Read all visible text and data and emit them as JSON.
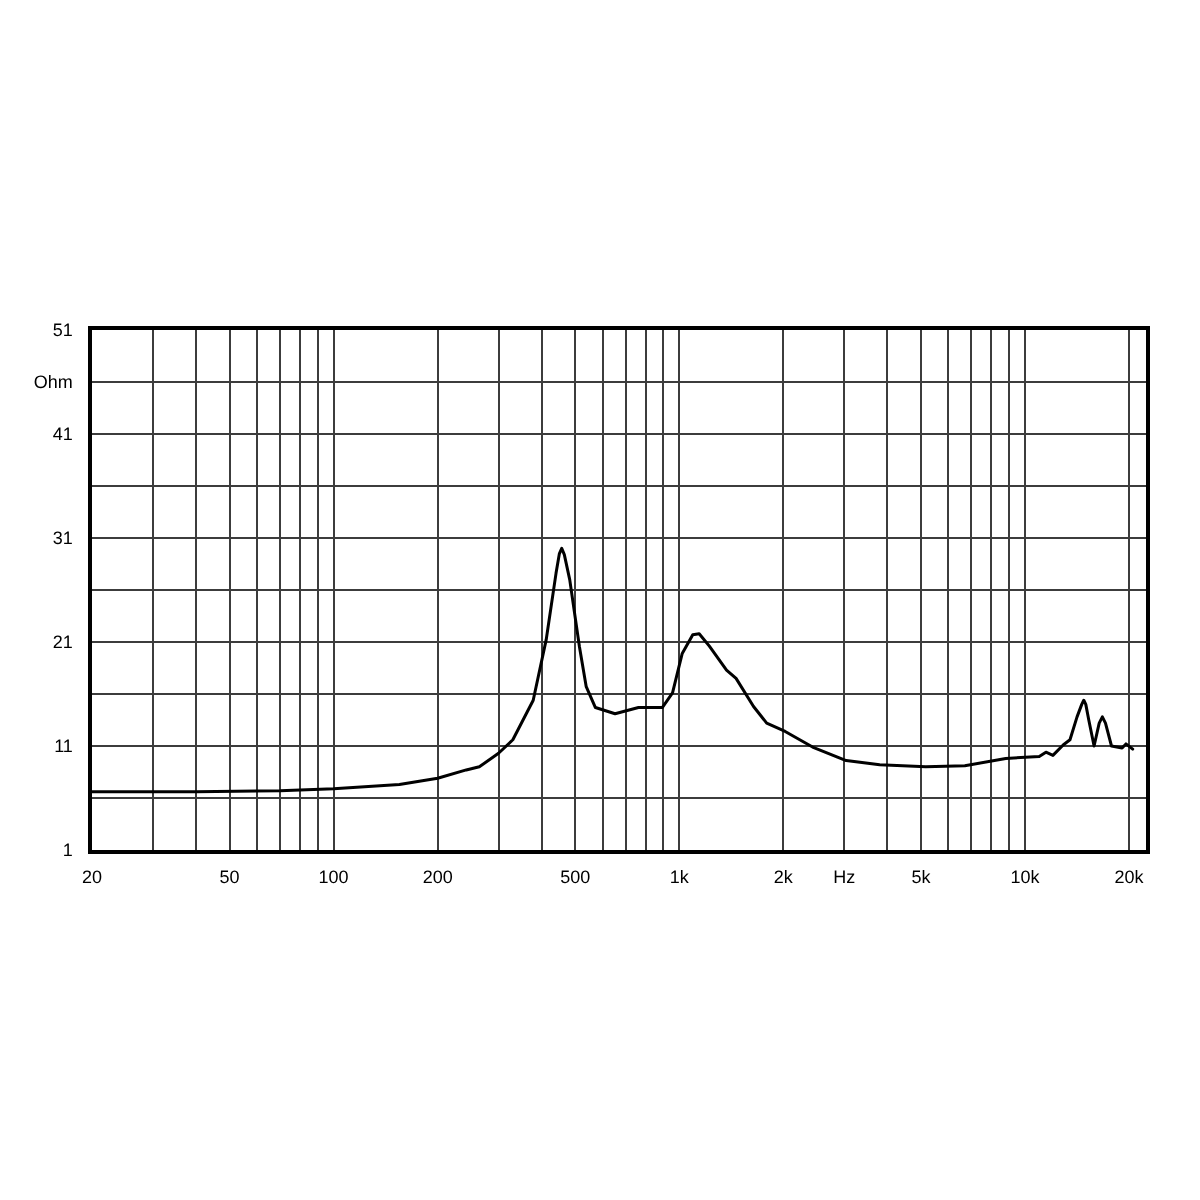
{
  "chart_data": {
    "type": "line",
    "xlim": [
      20,
      22400
    ],
    "ylim": [
      1,
      51
    ],
    "log": "x",
    "grid": true,
    "line_style": "solid",
    "xticks": [
      20,
      {
        "value": 30,
        "label": null
      },
      {
        "value": 40,
        "label": null
      },
      50,
      {
        "value": 60,
        "label": null
      },
      {
        "value": 70,
        "label": null
      },
      {
        "value": 80,
        "label": null
      },
      {
        "value": 90,
        "label": null
      },
      100,
      200,
      {
        "value": 300,
        "label": null
      },
      {
        "value": 400,
        "label": null
      },
      500,
      {
        "value": 600,
        "label": null
      },
      {
        "value": 700,
        "label": null
      },
      {
        "value": 800,
        "label": null
      },
      {
        "value": 900,
        "label": null
      },
      {
        "value": 1000,
        "label": "1k"
      },
      {
        "value": 2000,
        "label": "2k"
      },
      {
        "value": 3000,
        "label": "Hz"
      },
      {
        "value": 4000,
        "label": null
      },
      {
        "value": 5000,
        "label": "5k"
      },
      {
        "value": 6000,
        "label": null
      },
      {
        "value": 7000,
        "label": null
      },
      {
        "value": 8000,
        "label": null
      },
      {
        "value": 9000,
        "label": null
      },
      {
        "value": 10000,
        "label": "10k"
      },
      {
        "value": 20000,
        "label": "20k"
      }
    ],
    "yticks": [
      1,
      {
        "value": 6,
        "label": null
      },
      11,
      {
        "value": 16,
        "label": null
      },
      21,
      {
        "value": 26,
        "label": null
      },
      31,
      {
        "value": 36,
        "label": null
      },
      41,
      {
        "value": 46,
        "label": "Ohm"
      },
      51
    ],
    "series": [
      {
        "color": "#000000",
        "x": [
          20,
          40,
          70,
          100,
          155,
          200,
          242,
          264,
          300,
          330,
          378,
          412,
          440,
          450,
          457,
          465,
          482,
          514,
          538,
          572,
          652,
          762,
          893,
          956,
          1020,
          1094,
          1142,
          1222,
          1370,
          1460,
          1640,
          1790,
          2025,
          2430,
          3040,
          3800,
          5165,
          6700,
          8800,
          11000,
          11500,
          12050,
          12900,
          13500,
          14150,
          14600,
          14800,
          15000,
          15300,
          15850,
          16400,
          16750,
          17100,
          17800,
          19100,
          19600,
          20500
        ],
        "values": [
          6.6,
          6.6,
          6.7,
          6.9,
          7.3,
          7.9,
          8.7,
          9.0,
          10.3,
          11.6,
          15.4,
          21.2,
          27.6,
          29.5,
          30.0,
          29.4,
          27.0,
          20.6,
          16.7,
          14.7,
          14.1,
          14.7,
          14.7,
          16.1,
          19.9,
          21.7,
          21.8,
          20.6,
          18.3,
          17.5,
          14.8,
          13.2,
          12.4,
          10.9,
          9.6,
          9.2,
          9.0,
          9.1,
          9.8,
          10.0,
          10.4,
          10.1,
          11.1,
          11.6,
          13.8,
          15.0,
          15.4,
          15.0,
          13.5,
          11.0,
          13.2,
          13.8,
          13.2,
          11.0,
          10.8,
          11.2,
          10.7
        ]
      }
    ]
  }
}
